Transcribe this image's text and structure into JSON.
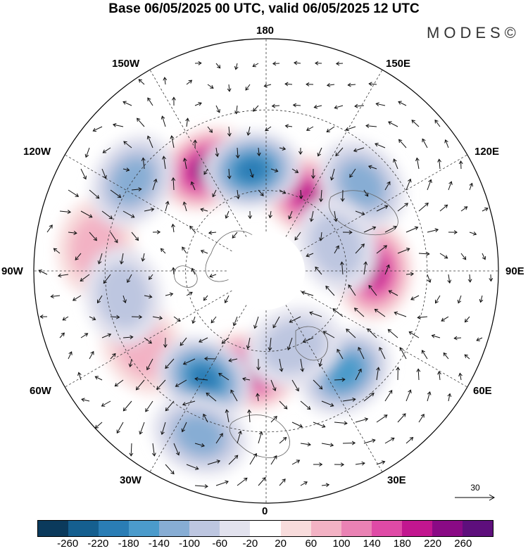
{
  "title": "Base 06/05/2025 00 UTC, valid 06/05/2025 12 UTC",
  "brand": "MODES©",
  "longitude_labels": {
    "lon_180": "180",
    "lon_150e": "150E",
    "lon_150w": "150W",
    "lon_120w": "120W",
    "lon_120e": "120E",
    "lon_90w": "90W",
    "lon_90e": "90E",
    "lon_60w": "60W",
    "lon_60e": "60E",
    "lon_30w": "30W",
    "lon_30e": "30E",
    "lon_0": "0"
  },
  "reference_vector": {
    "value": "30"
  },
  "colorbar": {
    "labels": [
      "-260",
      "-220",
      "-180",
      "-140",
      "-100",
      "-60",
      "-20",
      "20",
      "60",
      "100",
      "140",
      "180",
      "220",
      "260"
    ],
    "colors": [
      "#0b3a5c",
      "#155f8f",
      "#2a7db5",
      "#4b9bcb",
      "#87add4",
      "#bdc6e0",
      "#e2e2ee",
      "#ffffff",
      "#f8dcdc",
      "#f3b2c4",
      "#ea82b4",
      "#df4aa6",
      "#c2168f",
      "#8a0a85",
      "#5e0f7c"
    ]
  },
  "anomaly_centers": [
    {
      "sign": "positive",
      "lon": 150,
      "lat": 58,
      "level": 5
    },
    {
      "sign": "positive",
      "lon": -150,
      "lat": 46,
      "level": 6
    },
    {
      "sign": "positive",
      "lon": 90,
      "lat": 50,
      "level": 5
    },
    {
      "sign": "positive",
      "lon": -10,
      "lat": 52,
      "level": 5
    },
    {
      "sign": "positive",
      "lon": -98,
      "lat": 26,
      "level": 2
    },
    {
      "sign": "positive",
      "lon": -58,
      "lat": 36,
      "level": 2
    },
    {
      "sign": "negative",
      "lon": -172,
      "lat": 52,
      "level": 5
    },
    {
      "sign": "negative",
      "lon": -124,
      "lat": 30,
      "level": 3
    },
    {
      "sign": "negative",
      "lon": -80,
      "lat": 36,
      "level": 2
    },
    {
      "sign": "negative",
      "lon": -30,
      "lat": 44,
      "level": 5
    },
    {
      "sign": "negative",
      "lon": -22,
      "lat": 24,
      "level": 3
    },
    {
      "sign": "negative",
      "lon": 38,
      "lat": 42,
      "level": 4
    },
    {
      "sign": "negative",
      "lon": 20,
      "lat": 60,
      "level": 2
    },
    {
      "sign": "negative",
      "lon": 132,
      "lat": 42,
      "level": 3
    },
    {
      "sign": "negative",
      "lon": 110,
      "lat": 62,
      "level": 2
    }
  ]
}
